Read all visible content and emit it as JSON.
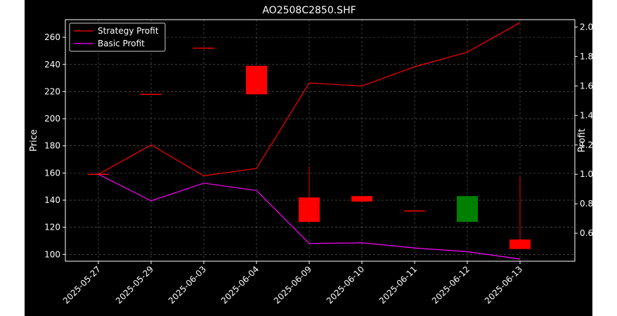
{
  "chart_data": {
    "type": "candlestick-with-lines",
    "title": "AO2508C2850.SHF",
    "xlabel": "",
    "ylabel": "Price",
    "y2label": "Profit",
    "categories": [
      "2025-05-27",
      "2025-05-29",
      "2025-06-03",
      "2025-06-04",
      "2025-06-09",
      "2025-06-10",
      "2025-06-11",
      "2025-06-12",
      "2025-06-13"
    ],
    "ylim": [
      95,
      273
    ],
    "y2lim": [
      0.41,
      2.05
    ],
    "yticks": [
      100,
      120,
      140,
      160,
      180,
      200,
      220,
      240,
      260
    ],
    "y2ticks": [
      0.6,
      0.8,
      1.0,
      1.2,
      1.4,
      1.6,
      1.8,
      2.0
    ],
    "candles": [
      {
        "date": "2025-05-27",
        "open": 159,
        "high": 159,
        "low": 159,
        "close": 159
      },
      {
        "date": "2025-05-29",
        "open": 218,
        "high": 218,
        "low": 218,
        "close": 218
      },
      {
        "date": "2025-06-03",
        "open": 252,
        "high": 252,
        "low": 252,
        "close": 252
      },
      {
        "date": "2025-06-04",
        "open": 239,
        "high": 239,
        "low": 218,
        "close": 218
      },
      {
        "date": "2025-06-09",
        "open": 142,
        "high": 165,
        "low": 124,
        "close": 124
      },
      {
        "date": "2025-06-10",
        "open": 143,
        "high": 143,
        "low": 139,
        "close": 139
      },
      {
        "date": "2025-06-11",
        "open": 132,
        "high": 132,
        "low": 132,
        "close": 132
      },
      {
        "date": "2025-06-12",
        "open": 124,
        "high": 143,
        "low": 124,
        "close": 143
      },
      {
        "date": "2025-06-13",
        "open": 111,
        "high": 157,
        "low": 104,
        "close": 104
      }
    ],
    "series": [
      {
        "name": "Strategy Profit",
        "axis": "right",
        "color": "#ff0000",
        "values": [
          1.0,
          1.2,
          0.99,
          1.04,
          1.62,
          1.6,
          1.73,
          1.83,
          2.03
        ]
      },
      {
        "name": "Basic Profit",
        "axis": "right",
        "color": "#ff00ff",
        "values": [
          1.0,
          0.82,
          0.94,
          0.89,
          0.53,
          0.535,
          0.5,
          0.475,
          0.425
        ]
      }
    ],
    "grid": true,
    "legend": "top-left",
    "colors": {
      "up": "#008000",
      "down": "#ff0000",
      "background": "#000000",
      "grid": "#808080",
      "text": "#ffffff"
    }
  }
}
